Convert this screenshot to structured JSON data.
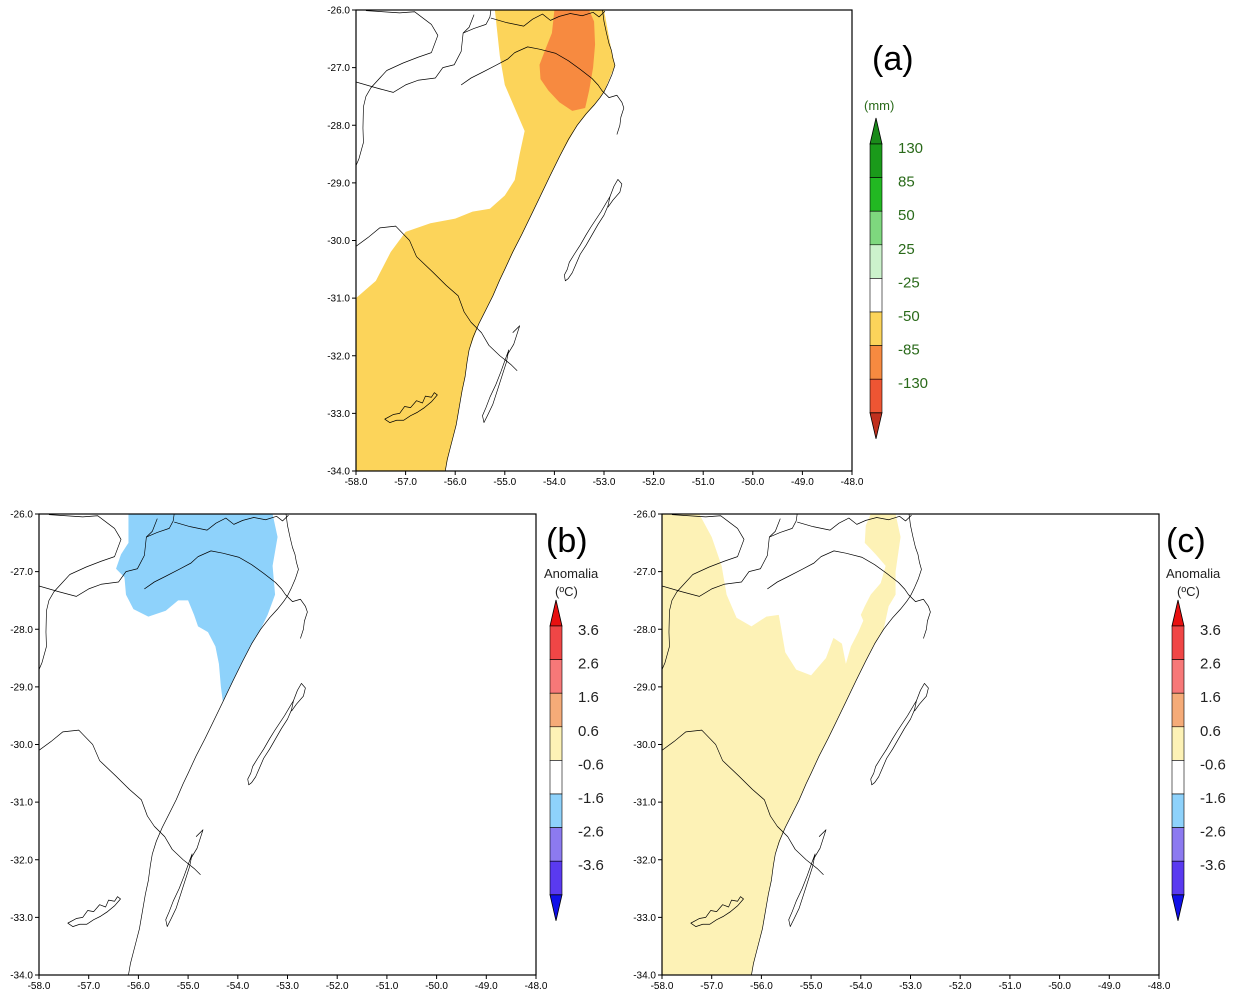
{
  "axes": {
    "lon_ticks": [
      "-58.0",
      "-57.0",
      "-56.0",
      "-55.0",
      "-54.0",
      "-53.0",
      "-52.0",
      "-51.0",
      "-50.0",
      "-49.0",
      "-48.0"
    ],
    "lat_ticks": [
      "-26.0",
      "-27.0",
      "-28.0",
      "-29.0",
      "-30.0",
      "-31.0",
      "-32.0",
      "-33.0",
      "-34.0"
    ],
    "lon_range": [
      -58,
      -48
    ],
    "lat_range": [
      -34,
      -26
    ]
  },
  "panels": {
    "a": {
      "label": "(a)",
      "unit": "(mm)",
      "colorbar": {
        "labels": [
          "130",
          "85",
          "50",
          "25",
          "-25",
          "-50",
          "-85",
          "-130"
        ],
        "colors": [
          "#1a9a1a",
          "#22b822",
          "#7ed87e",
          "#ccf2cc",
          "#ffffff",
          "#fcd45a",
          "#f78a40",
          "#ee5533"
        ],
        "top_arrow": "#1a8a1a",
        "bottom_arrow": "#c0301e",
        "label_color": "#2a6a1a"
      },
      "fill_colors": {
        "light": "#fcd45a",
        "strong": "#f78a40"
      }
    },
    "b": {
      "label": "(b)",
      "unit_line1": "Anomalia",
      "unit_line2": "(ºC)",
      "colorbar": {
        "labels": [
          "3.6",
          "2.6",
          "1.6",
          "0.6",
          "-0.6",
          "-1.6",
          "-2.6",
          "-3.6"
        ],
        "colors": [
          "#f04646",
          "#f77878",
          "#f5ab78",
          "#fdf2b6",
          "#ffffff",
          "#8ed2fb",
          "#8c7af0",
          "#5a3af0"
        ],
        "top_arrow": "#e81010",
        "bottom_arrow": "#1010e8",
        "label_color": "#222222"
      },
      "fill_colors": {
        "cold": "#8ed2fb"
      }
    },
    "c": {
      "label": "(c)",
      "unit_line1": "Anomalia",
      "unit_line2": "(ºC)",
      "colorbar": {
        "labels": [
          "3.6",
          "2.6",
          "1.6",
          "0.6",
          "-0.6",
          "-1.6",
          "-2.6",
          "-3.6"
        ],
        "colors": [
          "#f04646",
          "#f77878",
          "#f5ab78",
          "#fdf2b6",
          "#ffffff",
          "#8ed2fb",
          "#8c7af0",
          "#5a3af0"
        ],
        "top_arrow": "#e81010",
        "bottom_arrow": "#1010e8",
        "label_color": "#222222"
      },
      "fill_colors": {
        "warm": "#fdf2b6"
      }
    }
  }
}
